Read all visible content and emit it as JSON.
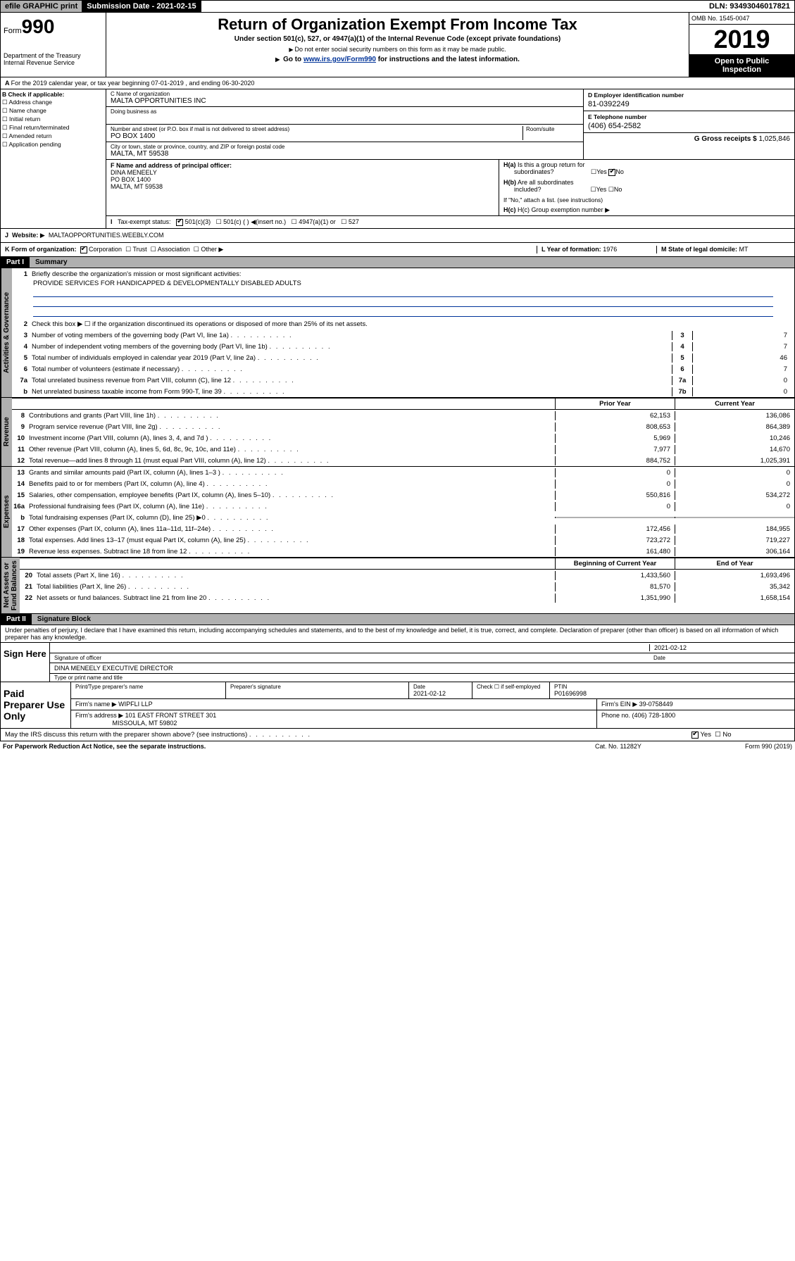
{
  "topbar": {
    "efile": "efile GRAPHIC print",
    "subdate_label": "Submission Date - ",
    "subdate": "2021-02-15",
    "dln": "DLN: 93493046017821"
  },
  "header": {
    "form_prefix": "Form",
    "form_num": "990",
    "dept": "Department of the Treasury\nInternal Revenue Service",
    "title": "Return of Organization Exempt From Income Tax",
    "subtitle": "Under section 501(c), 527, or 4947(a)(1) of the Internal Revenue Code (except private foundations)",
    "note1": "Do not enter social security numbers on this form as it may be made public.",
    "note2_pre": "Go to ",
    "note2_link": "www.irs.gov/Form990",
    "note2_post": " for instructions and the latest information.",
    "omb": "OMB No. 1545-0047",
    "year": "2019",
    "open": "Open to Public\nInspection"
  },
  "line_a": "For the 2019 calendar year, or tax year beginning 07-01-2019    , and ending 06-30-2020",
  "section_b": {
    "hdr": "B Check if applicable:",
    "items": [
      "Address change",
      "Name change",
      "Initial return",
      "Final return/terminated",
      "Amended return",
      "Application pending"
    ]
  },
  "name_block": {
    "c_lbl": "C Name of organization",
    "c_val": "MALTA OPPORTUNITIES INC",
    "dba_lbl": "Doing business as",
    "addr_lbl": "Number and street (or P.O. box if mail is not delivered to street address)",
    "room_lbl": "Room/suite",
    "addr_val": "PO BOX 1400",
    "city_lbl": "City or town, state or province, country, and ZIP or foreign postal code",
    "city_val": "MALTA, MT  59538"
  },
  "right_block": {
    "d_lbl": "D Employer identification number",
    "d_val": "81-0392249",
    "e_lbl": "E Telephone number",
    "e_val": "(406) 654-2582",
    "g_lbl": "G Gross receipts $ ",
    "g_val": "1,025,846"
  },
  "f_block": {
    "lbl": "F  Name and address of principal officer:",
    "name": "DINA MENEELY",
    "addr1": "PO BOX 1400",
    "addr2": "MALTA, MT  59538"
  },
  "h_block": {
    "a_lbl": "H(a)  Is this a group return for subordinates?",
    "b_lbl": "H(b)  Are all subordinates included?",
    "b_note": "If \"No,\" attach a list. (see instructions)",
    "c_lbl": "H(c)  Group exemption number",
    "yes": "Yes",
    "no": "No"
  },
  "tax_status": {
    "i_lbl": "Tax-exempt status:",
    "opt1": "501(c)(3)",
    "opt2": "501(c) (  )",
    "opt2_note": "(insert no.)",
    "opt3": "4947(a)(1) or",
    "opt4": "527"
  },
  "j_row": {
    "lbl": "J",
    "text": "Website:",
    "val": "MALTAOPPORTUNITIES.WEEBLY.COM"
  },
  "k_row": {
    "lbl": "K Form of organization:",
    "opts": [
      "Corporation",
      "Trust",
      "Association",
      "Other"
    ],
    "l_lbl": "L Year of formation: ",
    "l_val": "1976",
    "m_lbl": "M State of legal domicile: ",
    "m_val": "MT"
  },
  "part1": {
    "hdr": "Part I",
    "title": "Summary"
  },
  "activities": {
    "label": "Activities & Governance",
    "line1": "Briefly describe the organization's mission or most significant activities:",
    "mission": "PROVIDE SERVICES FOR HANDICAPPED & DEVELOPMENTALLY DISABLED ADULTS",
    "line2": "Check this box ▶ ☐  if the organization discontinued its operations or disposed of more than 25% of its net assets.",
    "rows": [
      {
        "n": "3",
        "t": "Number of voting members of the governing body (Part VI, line 1a)",
        "b": "3",
        "v": "7"
      },
      {
        "n": "4",
        "t": "Number of independent voting members of the governing body (Part VI, line 1b)",
        "b": "4",
        "v": "7"
      },
      {
        "n": "5",
        "t": "Total number of individuals employed in calendar year 2019 (Part V, line 2a)",
        "b": "5",
        "v": "46"
      },
      {
        "n": "6",
        "t": "Total number of volunteers (estimate if necessary)",
        "b": "6",
        "v": "7"
      },
      {
        "n": "7a",
        "t": "Total unrelated business revenue from Part VIII, column (C), line 12",
        "b": "7a",
        "v": "0"
      },
      {
        "n": "b",
        "t": "Net unrelated business taxable income from Form 990-T, line 39",
        "b": "7b",
        "v": "0"
      }
    ]
  },
  "revenue": {
    "label": "Revenue",
    "hdr1": "Prior Year",
    "hdr2": "Current Year",
    "rows": [
      {
        "n": "8",
        "t": "Contributions and grants (Part VIII, line 1h)",
        "v1": "62,153",
        "v2": "136,086"
      },
      {
        "n": "9",
        "t": "Program service revenue (Part VIII, line 2g)",
        "v1": "808,653",
        "v2": "864,389"
      },
      {
        "n": "10",
        "t": "Investment income (Part VIII, column (A), lines 3, 4, and 7d )",
        "v1": "5,969",
        "v2": "10,246"
      },
      {
        "n": "11",
        "t": "Other revenue (Part VIII, column (A), lines 5, 6d, 8c, 9c, 10c, and 11e)",
        "v1": "7,977",
        "v2": "14,670"
      },
      {
        "n": "12",
        "t": "Total revenue—add lines 8 through 11 (must equal Part VIII, column (A), line 12)",
        "v1": "884,752",
        "v2": "1,025,391"
      }
    ]
  },
  "expenses": {
    "label": "Expenses",
    "rows": [
      {
        "n": "13",
        "t": "Grants and similar amounts paid (Part IX, column (A), lines 1–3 )",
        "v1": "0",
        "v2": "0"
      },
      {
        "n": "14",
        "t": "Benefits paid to or for members (Part IX, column (A), line 4)",
        "v1": "0",
        "v2": "0"
      },
      {
        "n": "15",
        "t": "Salaries, other compensation, employee benefits (Part IX, column (A), lines 5–10)",
        "v1": "550,816",
        "v2": "534,272"
      },
      {
        "n": "16a",
        "t": "Professional fundraising fees (Part IX, column (A), line 11e)",
        "v1": "0",
        "v2": "0"
      },
      {
        "n": "b",
        "t": "Total fundraising expenses (Part IX, column (D), line 25) ▶0",
        "v1": "",
        "v2": ""
      },
      {
        "n": "17",
        "t": "Other expenses (Part IX, column (A), lines 11a–11d, 11f–24e)",
        "v1": "172,456",
        "v2": "184,955"
      },
      {
        "n": "18",
        "t": "Total expenses. Add lines 13–17 (must equal Part IX, column (A), line 25)",
        "v1": "723,272",
        "v2": "719,227"
      },
      {
        "n": "19",
        "t": "Revenue less expenses. Subtract line 18 from line 12",
        "v1": "161,480",
        "v2": "306,164"
      }
    ]
  },
  "netassets": {
    "label": "Net Assets or\nFund Balances",
    "hdr1": "Beginning of Current Year",
    "hdr2": "End of Year",
    "rows": [
      {
        "n": "20",
        "t": "Total assets (Part X, line 16)",
        "v1": "1,433,560",
        "v2": "1,693,496"
      },
      {
        "n": "21",
        "t": "Total liabilities (Part X, line 26)",
        "v1": "81,570",
        "v2": "35,342"
      },
      {
        "n": "22",
        "t": "Net assets or fund balances. Subtract line 21 from line 20",
        "v1": "1,351,990",
        "v2": "1,658,154"
      }
    ]
  },
  "part2": {
    "hdr": "Part II",
    "title": "Signature Block"
  },
  "perjury": "Under penalties of perjury, I declare that I have examined this return, including accompanying schedules and statements, and to the best of my knowledge and belief, it is true, correct, and complete. Declaration of preparer (other than officer) is based on all information of which preparer has any knowledge.",
  "sign": {
    "label": "Sign Here",
    "sig_lbl": "Signature of officer",
    "date": "2021-02-12",
    "date_lbl": "Date",
    "name": "DINA MENEELY  EXECUTIVE DIRECTOR",
    "name_lbl": "Type or print name and title"
  },
  "paid": {
    "label": "Paid Preparer Use Only",
    "h1": "Print/Type preparer's name",
    "h2": "Preparer's signature",
    "h3": "Date",
    "date": "2021-02-12",
    "chk_lbl": "Check ☐ if self-employed",
    "ptin_lbl": "PTIN",
    "ptin": "P01696998",
    "firm_lbl": "Firm's name    ▶ ",
    "firm": "WIPFLI LLP",
    "ein_lbl": "Firm's EIN ▶ ",
    "ein": "39-0758449",
    "addr_lbl": "Firm's address ▶ ",
    "addr1": "101 EAST FRONT STREET 301",
    "addr2": "MISSOULA, MT  59802",
    "phone_lbl": "Phone no. ",
    "phone": "(406) 728-1800"
  },
  "discuss": "May the IRS discuss this return with the preparer shown above? (see instructions)",
  "footer": {
    "left": "For Paperwork Reduction Act Notice, see the separate instructions.",
    "mid": "Cat. No. 11282Y",
    "right": "Form 990 (2019)"
  }
}
